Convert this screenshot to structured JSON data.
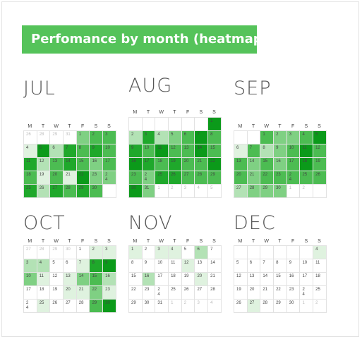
{
  "title": "Perfomance by month (heatmap)",
  "colors": {
    "banner": "#55c35a",
    "scale": [
      "#ffffff",
      "#dff2df",
      "#b3e2b5",
      "#7fd083",
      "#4cbc52",
      "#1fa82b",
      "#0b9a1a"
    ]
  },
  "weekdays": [
    "M",
    "T",
    "W",
    "T",
    "F",
    "S",
    "S"
  ],
  "chart_data": {
    "type": "heatmap",
    "intensity_scale": "0 (none) to 6 (darkest green)",
    "months": [
      {
        "name": "JUL",
        "weeks": [
          [
            {
              "d": "26",
              "o": true,
              "v": 0
            },
            {
              "d": "28",
              "o": true,
              "v": 0
            },
            {
              "d": "29",
              "o": true,
              "v": 0
            },
            {
              "d": "31",
              "o": true,
              "v": 0
            },
            {
              "d": "1",
              "v": 3
            },
            {
              "d": "2",
              "v": 4
            },
            {
              "d": "3",
              "v": 4
            }
          ],
          [
            {
              "d": "4",
              "v": 1
            },
            {
              "d": "5",
              "v": 6
            },
            {
              "d": "6",
              "v": 2
            },
            {
              "d": "7",
              "v": 5
            },
            {
              "d": "8",
              "v": 4
            },
            {
              "d": "9",
              "v": 5
            },
            {
              "d": "10",
              "v": 4
            }
          ],
          [
            {
              "d": "11",
              "v": 5
            },
            {
              "d": "12",
              "v": 2
            },
            {
              "d": "13",
              "v": 4
            },
            {
              "d": "14",
              "v": 5
            },
            {
              "d": "15",
              "v": 4
            },
            {
              "d": "16",
              "v": 3
            },
            {
              "d": "17",
              "v": 4
            }
          ],
          [
            {
              "d": "18",
              "v": 4
            },
            {
              "d": "19",
              "v": 1
            },
            {
              "d": "20",
              "v": 4
            },
            {
              "d": "21",
              "v": 1
            },
            {
              "d": "22",
              "v": 6
            },
            {
              "d": "23",
              "v": 3
            },
            {
              "d": "2\n4",
              "v": 3
            }
          ],
          [
            {
              "d": "25",
              "v": 5
            },
            {
              "d": "26",
              "v": 2
            },
            {
              "d": "27",
              "v": 5
            },
            {
              "d": "28",
              "v": 4
            },
            {
              "d": "29",
              "v": 5
            },
            {
              "d": "30",
              "v": 4
            },
            {
              "d": "",
              "v": 0
            }
          ]
        ]
      },
      {
        "name": "AUG",
        "weeks": [
          [
            {
              "d": "",
              "v": 0
            },
            {
              "d": "",
              "v": 0
            },
            {
              "d": "",
              "v": 0
            },
            {
              "d": "",
              "v": 0
            },
            {
              "d": "",
              "v": 0
            },
            {
              "d": "",
              "v": 0
            },
            {
              "d": "1",
              "v": 6
            }
          ],
          [
            {
              "d": "2",
              "v": 2
            },
            {
              "d": "3",
              "v": 5
            },
            {
              "d": "4",
              "v": 2
            },
            {
              "d": "5",
              "v": 3
            },
            {
              "d": "6",
              "v": 4
            },
            {
              "d": "7",
              "v": 6
            },
            {
              "d": "8",
              "v": 4
            }
          ],
          [
            {
              "d": "9",
              "v": 5
            },
            {
              "d": "10",
              "v": 4
            },
            {
              "d": "11",
              "v": 6
            },
            {
              "d": "12",
              "v": 4
            },
            {
              "d": "13",
              "v": 4
            },
            {
              "d": "14",
              "v": 6
            },
            {
              "d": "15",
              "v": 4
            }
          ],
          [
            {
              "d": "16",
              "v": 6
            },
            {
              "d": "17",
              "v": 5
            },
            {
              "d": "18",
              "v": 4
            },
            {
              "d": "19",
              "v": 5
            },
            {
              "d": "20",
              "v": 4
            },
            {
              "d": "21",
              "v": 4
            },
            {
              "d": "22",
              "v": 6
            }
          ],
          [
            {
              "d": "23",
              "v": 4
            },
            {
              "d": "2\n4",
              "v": 3
            },
            {
              "d": "25",
              "v": 5
            },
            {
              "d": "26",
              "v": 5
            },
            {
              "d": "27",
              "v": 4
            },
            {
              "d": "28",
              "v": 4
            },
            {
              "d": "29",
              "v": 4
            }
          ],
          [
            {
              "d": "30",
              "v": 6
            },
            {
              "d": "31",
              "v": 3
            },
            {
              "d": "1",
              "o": true,
              "v": 0
            },
            {
              "d": "2",
              "o": true,
              "v": 0
            },
            {
              "d": "3",
              "o": true,
              "v": 0
            },
            {
              "d": "4",
              "o": true,
              "v": 0
            },
            {
              "d": "5",
              "o": true,
              "v": 0
            }
          ]
        ]
      },
      {
        "name": "SEP",
        "weeks": [
          [
            {
              "d": "",
              "v": 0
            },
            {
              "d": "",
              "v": 0
            },
            {
              "d": "1",
              "v": 4
            },
            {
              "d": "2",
              "v": 3
            },
            {
              "d": "3",
              "v": 3
            },
            {
              "d": "4",
              "v": 4
            },
            {
              "d": "5",
              "v": 6
            }
          ],
          [
            {
              "d": "6",
              "v": 1
            },
            {
              "d": "7",
              "v": 4
            },
            {
              "d": "8",
              "v": 2
            },
            {
              "d": "9",
              "v": 3
            },
            {
              "d": "10",
              "v": 4
            },
            {
              "d": "11",
              "v": 6
            },
            {
              "d": "12",
              "v": 4
            }
          ],
          [
            {
              "d": "13",
              "v": 4
            },
            {
              "d": "14",
              "v": 3
            },
            {
              "d": "15",
              "v": 4
            },
            {
              "d": "16",
              "v": 3
            },
            {
              "d": "17",
              "v": 4
            },
            {
              "d": "18",
              "v": 6
            },
            {
              "d": "19",
              "v": 4
            }
          ],
          [
            {
              "d": "20",
              "v": 4
            },
            {
              "d": "21",
              "v": 3
            },
            {
              "d": "22",
              "v": 4
            },
            {
              "d": "23",
              "v": 4
            },
            {
              "d": "2\n4",
              "v": 4
            },
            {
              "d": "25",
              "v": 4
            },
            {
              "d": "26",
              "v": 4
            }
          ],
          [
            {
              "d": "27",
              "v": 2
            },
            {
              "d": "28",
              "v": 3
            },
            {
              "d": "29",
              "v": 3
            },
            {
              "d": "30",
              "v": 3
            },
            {
              "d": "1",
              "o": true,
              "v": 0
            },
            {
              "d": "2",
              "o": true,
              "v": 0
            },
            {
              "d": "",
              "v": 0
            }
          ]
        ]
      },
      {
        "name": "OCT",
        "weeks": [
          [
            {
              "d": "27",
              "o": true,
              "v": 0
            },
            {
              "d": "28",
              "o": true,
              "v": 0
            },
            {
              "d": "29",
              "o": true,
              "v": 0
            },
            {
              "d": "30",
              "o": true,
              "v": 0
            },
            {
              "d": "1",
              "v": 0
            },
            {
              "d": "2",
              "v": 1
            },
            {
              "d": "3",
              "v": 1
            }
          ],
          [
            {
              "d": "3",
              "v": 2
            },
            {
              "d": "4",
              "v": 2
            },
            {
              "d": "5",
              "v": 0
            },
            {
              "d": "6",
              "v": 0
            },
            {
              "d": "7",
              "v": 1
            },
            {
              "d": "8",
              "v": 5
            },
            {
              "d": "9",
              "v": 6
            }
          ],
          [
            {
              "d": "10",
              "v": 3
            },
            {
              "d": "11",
              "v": 1
            },
            {
              "d": "12",
              "v": 0
            },
            {
              "d": "13",
              "v": 1
            },
            {
              "d": "14",
              "v": 3
            },
            {
              "d": "15",
              "v": 4
            },
            {
              "d": "16",
              "v": 2
            }
          ],
          [
            {
              "d": "17",
              "v": 0
            },
            {
              "d": "18",
              "v": 0
            },
            {
              "d": "19",
              "v": 0
            },
            {
              "d": "20",
              "v": 1
            },
            {
              "d": "21",
              "v": 1
            },
            {
              "d": "22",
              "v": 3
            },
            {
              "d": "23",
              "v": 1
            }
          ],
          [
            {
              "d": "2\n4",
              "v": 0
            },
            {
              "d": "25",
              "v": 1
            },
            {
              "d": "26",
              "v": 0
            },
            {
              "d": "27",
              "v": 0
            },
            {
              "d": "28",
              "v": 0
            },
            {
              "d": "29",
              "v": 4
            },
            {
              "d": "30",
              "v": 6
            }
          ]
        ]
      },
      {
        "name": "NOV",
        "weeks": [
          [
            {
              "d": "1",
              "v": 1
            },
            {
              "d": "2",
              "v": 0
            },
            {
              "d": "3",
              "v": 1
            },
            {
              "d": "4",
              "v": 1
            },
            {
              "d": "5",
              "v": 0
            },
            {
              "d": "6",
              "v": 2
            },
            {
              "d": "7",
              "v": 0
            }
          ],
          [
            {
              "d": "8",
              "v": 0
            },
            {
              "d": "9",
              "v": 0
            },
            {
              "d": "10",
              "v": 0
            },
            {
              "d": "11",
              "v": 0
            },
            {
              "d": "12",
              "v": 1
            },
            {
              "d": "13",
              "v": 0
            },
            {
              "d": "14",
              "v": 0
            }
          ],
          [
            {
              "d": "15",
              "v": 0
            },
            {
              "d": "16",
              "v": 2
            },
            {
              "d": "17",
              "v": 0
            },
            {
              "d": "18",
              "v": 0
            },
            {
              "d": "19",
              "v": 0
            },
            {
              "d": "20",
              "v": 1
            },
            {
              "d": "21",
              "v": 0
            }
          ],
          [
            {
              "d": "22",
              "v": 0
            },
            {
              "d": "23",
              "v": 0
            },
            {
              "d": "2\n4",
              "v": 0
            },
            {
              "d": "25",
              "v": 0
            },
            {
              "d": "26",
              "v": 0
            },
            {
              "d": "27",
              "v": 0
            },
            {
              "d": "28",
              "v": 0
            }
          ],
          [
            {
              "d": "29",
              "v": 0
            },
            {
              "d": "30",
              "v": 0
            },
            {
              "d": "31",
              "v": 0
            },
            {
              "d": "1",
              "o": true,
              "v": 0
            },
            {
              "d": "2",
              "o": true,
              "v": 0
            },
            {
              "d": "3",
              "o": true,
              "v": 0
            },
            {
              "d": "4",
              "o": true,
              "v": 0
            }
          ]
        ]
      },
      {
        "name": "DEC",
        "weeks": [
          [
            {
              "d": "",
              "v": 0
            },
            {
              "d": "",
              "v": 0
            },
            {
              "d": "",
              "v": 0
            },
            {
              "d": "",
              "v": 0
            },
            {
              "d": "",
              "v": 0
            },
            {
              "d": "",
              "v": 0
            },
            {
              "d": "4",
              "v": 1
            }
          ],
          [
            {
              "d": "5",
              "v": 0
            },
            {
              "d": "6",
              "v": 0
            },
            {
              "d": "7",
              "v": 0
            },
            {
              "d": "8",
              "v": 0
            },
            {
              "d": "9",
              "v": 0
            },
            {
              "d": "10",
              "v": 0
            },
            {
              "d": "11",
              "v": 0
            }
          ],
          [
            {
              "d": "12",
              "v": 0
            },
            {
              "d": "13",
              "v": 0
            },
            {
              "d": "14",
              "v": 0
            },
            {
              "d": "15",
              "v": 0
            },
            {
              "d": "16",
              "v": 0
            },
            {
              "d": "17",
              "v": 0
            },
            {
              "d": "18",
              "v": 0
            }
          ],
          [
            {
              "d": "19",
              "v": 0
            },
            {
              "d": "20",
              "v": 0
            },
            {
              "d": "21",
              "v": 0
            },
            {
              "d": "22",
              "v": 0
            },
            {
              "d": "23",
              "v": 0
            },
            {
              "d": "2\n4",
              "v": 0
            },
            {
              "d": "25",
              "v": 0
            }
          ],
          [
            {
              "d": "26",
              "v": 0
            },
            {
              "d": "27",
              "v": 1
            },
            {
              "d": "28",
              "v": 0
            },
            {
              "d": "29",
              "v": 0
            },
            {
              "d": "30",
              "v": 0
            },
            {
              "d": "1",
              "o": true,
              "v": 0
            },
            {
              "d": "2",
              "o": true,
              "v": 0
            }
          ]
        ]
      }
    ]
  }
}
